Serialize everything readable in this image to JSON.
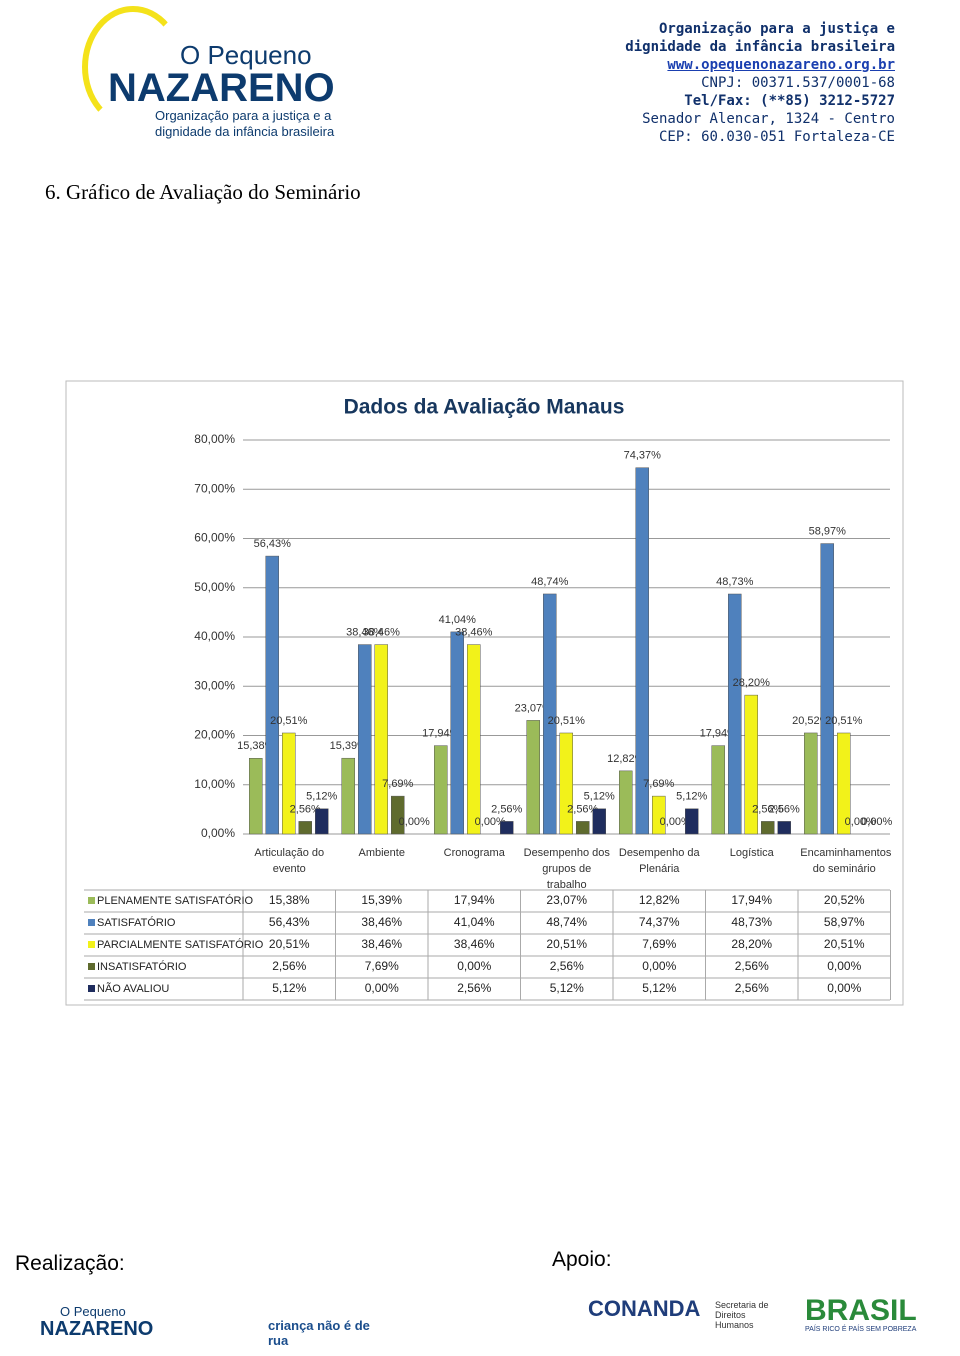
{
  "header": {
    "logo_small": "O Pequeno",
    "logo_big": "NAZARENO",
    "logo_tagline": "Organização para a justiça e a dignidade da infância brasileira",
    "contact": [
      "Organização para a justiça e",
      "dignidade da infância brasileira",
      "www.opequenonazareno.org.br",
      "CNPJ: 00371.537/0001-68",
      "Tel/Fax: (**85) 3212-5727",
      "Senador Alencar, 1324 - Centro",
      "CEP: 60.030-051 Fortaleza-CE"
    ]
  },
  "section_title": "6. Gráfico de Avaliação do Seminário",
  "chart_data": {
    "type": "bar",
    "title": "Dados da Avaliação Manaus",
    "categories": [
      "Articulação do evento",
      "Ambiente",
      "Cronograma",
      "Desempenho dos grupos de trabalho",
      "Desempenho da Plenária",
      "Logística",
      "Encaminhamentos do seminário"
    ],
    "ylim": [
      0,
      80
    ],
    "yticks": [
      {
        "value": 0,
        "label": "0,00%"
      },
      {
        "value": 10,
        "label": "10,00%"
      },
      {
        "value": 20,
        "label": "20,00%"
      },
      {
        "value": 30,
        "label": "30,00%"
      },
      {
        "value": 40,
        "label": "40,00%"
      },
      {
        "value": 50,
        "label": "50,00%"
      },
      {
        "value": 60,
        "label": "60,00%"
      },
      {
        "value": 70,
        "label": "70,00%"
      },
      {
        "value": 80,
        "label": "80,00%"
      }
    ],
    "grid": true,
    "series": [
      {
        "name": "PLENAMENTE SATISFATÓRIO",
        "color": "#9bbb59",
        "values": [
          15.38,
          15.39,
          17.94,
          23.07,
          12.82,
          17.94,
          20.52
        ],
        "value_labels": [
          "15,38%",
          "15,39%",
          "17,94%",
          "23,07%",
          "12,82%",
          "17,94%",
          "20,52%"
        ]
      },
      {
        "name": "SATISFATÓRIO",
        "color": "#4f81bd",
        "values": [
          56.43,
          38.46,
          41.04,
          48.74,
          74.37,
          48.73,
          58.97
        ],
        "value_labels": [
          "56,43%",
          "38,46%",
          "41,04%",
          "48,74%",
          "74,37%",
          "48,73%",
          "58,97%"
        ]
      },
      {
        "name": "PARCIALMENTE SATISFATÓRIO",
        "color": "#f2f21a",
        "values": [
          20.51,
          38.46,
          38.46,
          20.51,
          7.69,
          28.2,
          20.51
        ],
        "value_labels": [
          "20,51%",
          "38,46%",
          "38,46%",
          "20,51%",
          "7,69%",
          "28,20%",
          "20,51%"
        ]
      },
      {
        "name": "INSATISFATÓRIO",
        "color": "#5f6b2e",
        "values": [
          2.56,
          7.69,
          0,
          2.56,
          0,
          2.56,
          0
        ],
        "value_labels": [
          "2,56%",
          "7,69%",
          "0,00%",
          "2,56%",
          "0,00%",
          "2,56%",
          "0,00%"
        ]
      },
      {
        "name": "NÃO AVALIOU",
        "color": "#1f2d5e",
        "values": [
          5.12,
          0,
          2.56,
          5.12,
          5.12,
          2.56,
          0
        ],
        "value_labels": [
          "5,12%",
          "0,00%",
          "2,56%",
          "5,12%",
          "5,12%",
          "2,56%",
          "0,00%"
        ]
      }
    ]
  },
  "footer": {
    "left_label": "Realização:",
    "right_label": "Apoio:",
    "logo1_small": "O Pequeno",
    "logo1_big": "NAZARENO",
    "logo2": "criança não é de rua",
    "logo3": "CONANDA",
    "logo4": "Secretaria de Direitos Humanos",
    "logo5": "BRASIL",
    "logo5_sub": "PAÍS RICO É PAÍS SEM POBREZA"
  }
}
